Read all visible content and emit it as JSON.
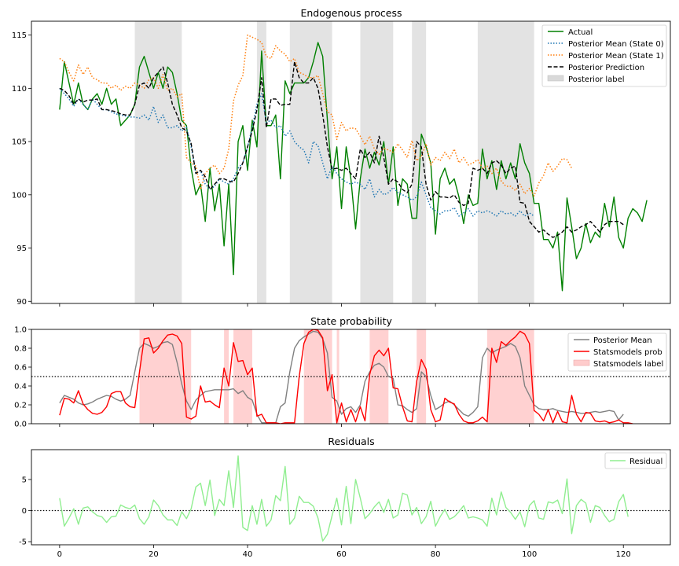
{
  "chart_data": [
    {
      "type": "line",
      "title": "Endogenous process",
      "xlim": [
        -6,
        130
      ],
      "ylim": [
        89.8,
        116.3
      ],
      "yticks": [
        90,
        95,
        100,
        105,
        110,
        115
      ],
      "legend_position": "top-right",
      "bands": {
        "name": "Posterior label",
        "color": "#d9d9d9",
        "spans": [
          [
            16,
            26
          ],
          [
            42,
            44
          ],
          [
            49,
            58
          ],
          [
            64,
            71
          ],
          [
            75,
            78
          ],
          [
            89,
            101
          ]
        ]
      },
      "series": [
        {
          "name": "Actual",
          "style": "solid",
          "color": "#008000",
          "x_start": 0,
          "values": [
            108.0,
            112.5,
            110.5,
            108.5,
            110.5,
            108.5,
            108.0,
            109.0,
            109.5,
            108.5,
            110.0,
            108.5,
            109.0,
            106.5,
            107.0,
            107.5,
            108.5,
            112.0,
            113.0,
            111.5,
            110.0,
            111.5,
            110.0,
            112.0,
            111.5,
            109.5,
            107.0,
            106.5,
            102.5,
            100.0,
            101.0,
            97.5,
            102.5,
            98.5,
            101.0,
            95.2,
            101.0,
            92.5,
            105.0,
            106.5,
            102.3,
            107.0,
            104.5,
            113.5,
            106.5,
            106.5,
            107.5,
            101.5,
            110.7,
            109.5,
            110.5,
            110.5,
            110.5,
            111.0,
            112.5,
            114.3,
            113.0,
            107.0,
            101.5,
            104.5,
            98.7,
            104.5,
            101.5,
            96.8,
            101.5,
            104.3,
            102.5,
            104.0,
            102.8,
            105.0,
            101.0,
            104.5,
            99.0,
            101.5,
            101.0,
            97.8,
            97.8,
            105.7,
            104.5,
            103.0,
            96.3,
            101.5,
            102.5,
            101.0,
            101.5,
            99.8,
            97.3,
            100.0,
            99.0,
            99.2,
            104.3,
            101.5,
            103.2,
            100.5,
            103.2,
            101.5,
            103.0,
            101.5,
            104.8,
            103.0,
            102.0,
            99.2,
            99.2,
            95.8,
            95.8,
            95.0,
            96.5,
            91.0,
            99.7,
            97.0,
            94.0,
            95.0,
            97.3,
            95.5,
            96.5,
            96.0,
            99.2,
            97.0,
            99.8,
            96.0,
            95.0,
            97.8,
            98.7,
            98.3,
            97.5,
            99.5
          ]
        },
        {
          "name": "Posterior Mean (State 0)",
          "style": "dotted",
          "color": "#1f77b4",
          "x_start": 0,
          "values": [
            110.0,
            109.5,
            109.0,
            108.3,
            109.0,
            108.5,
            108.0,
            109.0,
            108.5,
            108.0,
            108.0,
            107.8,
            107.6,
            107.5,
            107.4,
            107.3,
            107.3,
            107.2,
            107.5,
            107.0,
            108.3,
            106.8,
            107.5,
            106.3,
            106.3,
            106.5,
            106.0,
            106.4,
            104.5,
            102.0,
            102.3,
            101.0,
            100.5,
            100.8,
            101.5,
            101.2,
            101.0,
            101.5,
            102.5,
            103.0,
            104.5,
            106.3,
            108.5,
            109.5,
            106.8,
            107.0,
            106.3,
            106.5,
            105.5,
            106.0,
            105.0,
            104.5,
            104.2,
            103.0,
            105.0,
            104.6,
            103.0,
            101.5,
            102.7,
            102.0,
            101.5,
            101.2,
            101.0,
            101.2,
            101.0,
            100.5,
            101.5,
            99.8,
            100.5,
            100.0,
            100.2,
            100.7,
            100.2,
            100.0,
            99.8,
            99.5,
            99.8,
            101.2,
            100.0,
            98.8,
            98.5,
            98.2,
            98.5,
            98.5,
            98.8,
            98.0,
            98.3,
            98.7,
            98.0,
            98.5,
            98.3,
            98.5,
            98.3,
            98.0,
            98.5,
            98.2,
            98.3,
            98.0,
            98.5,
            98.0,
            98.3,
            98.0
          ]
        },
        {
          "name": "Posterior Mean (State 1)",
          "style": "dotted",
          "color": "#ff7f0e",
          "x_start": 0,
          "values": [
            112.8,
            112.5,
            111.5,
            110.7,
            112.2,
            111.3,
            112.0,
            111.0,
            110.8,
            110.5,
            110.5,
            110.0,
            110.3,
            109.8,
            110.2,
            110.0,
            110.5,
            110.3,
            110.0,
            110.8,
            111.0,
            110.0,
            111.3,
            109.8,
            110.0,
            109.2,
            109.5,
            103.5,
            103.0,
            102.7,
            100.5,
            102.0,
            102.5,
            102.8,
            102.0,
            102.5,
            104.3,
            108.8,
            110.3,
            111.2,
            115.0,
            114.8,
            114.6,
            114.3,
            113.0,
            112.8,
            114.0,
            113.5,
            113.2,
            112.5,
            112.8,
            111.5,
            111.3,
            111.0,
            111.0,
            111.2,
            109.5,
            107.8,
            107.5,
            105.2,
            106.8,
            106.0,
            106.3,
            106.2,
            105.5,
            104.7,
            105.5,
            104.3,
            103.8,
            104.4,
            104.2,
            104.0,
            104.8,
            104.2,
            103.5,
            105.1,
            103.2,
            103.6,
            104.8,
            102.8,
            103.5,
            103.2,
            104.0,
            103.4,
            104.3,
            103.0,
            103.5,
            102.8,
            103.0,
            103.3,
            102.5,
            102.7,
            102.0,
            102.5,
            101.3,
            100.8,
            100.8,
            100.4,
            101.0,
            100.1,
            100.6,
            99.9,
            101.1,
            101.8,
            103.0,
            102.2,
            102.7,
            103.4,
            103.3,
            102.5
          ]
        },
        {
          "name": "Posterior Prediction",
          "style": "dashed",
          "color": "#000000",
          "x_start": 0,
          "values": [
            110.0,
            109.8,
            109.3,
            108.5,
            109.0,
            108.7,
            108.9,
            108.9,
            109.0,
            108.0,
            108.0,
            107.9,
            107.8,
            107.6,
            107.5,
            107.5,
            108.5,
            110.3,
            110.5,
            110.0,
            111.0,
            111.5,
            112.0,
            110.5,
            108.5,
            107.5,
            106.3,
            106.0,
            104.8,
            102.0,
            102.3,
            101.7,
            100.5,
            101.0,
            101.5,
            101.5,
            101.3,
            101.2,
            102.0,
            103.0,
            104.5,
            106.0,
            108.0,
            111.0,
            106.3,
            109.0,
            109.0,
            108.4,
            108.5,
            108.5,
            112.5,
            111.0,
            110.5,
            110.5,
            111.0,
            110.0,
            107.5,
            104.5,
            102.4,
            102.5,
            102.3,
            102.5,
            102.0,
            101.5,
            104.3,
            103.5,
            104.0,
            103.0,
            105.5,
            103.5,
            101.0,
            101.5,
            101.2,
            100.5,
            100.2,
            101.0,
            105.0,
            104.5,
            101.0,
            99.5,
            100.3,
            99.8,
            99.8,
            99.7,
            100.0,
            99.3,
            99.0,
            99.2,
            102.5,
            102.3,
            102.5,
            102.0,
            103.0,
            103.2,
            102.8,
            102.0,
            102.5,
            102.7,
            99.3,
            99.2,
            97.5,
            97.0,
            96.5,
            96.7,
            96.3,
            96.0,
            96.2,
            96.5,
            97.0,
            96.5,
            96.7,
            97.0,
            97.2,
            97.5,
            97.0,
            96.5,
            97.2,
            97.5,
            97.5,
            97.5,
            97.2
          ]
        }
      ]
    },
    {
      "type": "line",
      "title": "State probability",
      "xlim": [
        -6,
        130
      ],
      "ylim": [
        0,
        1
      ],
      "yticks": [
        0.0,
        0.2,
        0.4,
        0.6,
        0.8,
        1.0
      ],
      "legend_position": "top-right",
      "hline": 0.5,
      "bands": {
        "name": "Statsmodels label",
        "color": "#ffcccc",
        "spans": [
          [
            17,
            28
          ],
          [
            35,
            36
          ],
          [
            37,
            41
          ],
          [
            52,
            58
          ],
          [
            59,
            59.5
          ],
          [
            66,
            70
          ],
          [
            76,
            78
          ],
          [
            91,
            101
          ]
        ]
      },
      "series": [
        {
          "name": "Posterior Mean",
          "color": "#808080",
          "x_start": 0,
          "values": [
            0.22,
            0.3,
            0.28,
            0.26,
            0.22,
            0.2,
            0.21,
            0.23,
            0.26,
            0.28,
            0.3,
            0.29,
            0.26,
            0.24,
            0.26,
            0.3,
            0.55,
            0.8,
            0.85,
            0.83,
            0.8,
            0.82,
            0.86,
            0.87,
            0.84,
            0.65,
            0.42,
            0.24,
            0.15,
            0.25,
            0.3,
            0.34,
            0.35,
            0.36,
            0.36,
            0.36,
            0.36,
            0.37,
            0.32,
            0.35,
            0.28,
            0.25,
            0.1,
            0.01,
            0.01,
            0.01,
            0.01,
            0.18,
            0.22,
            0.55,
            0.8,
            0.88,
            0.92,
            0.95,
            0.98,
            0.97,
            0.9,
            0.75,
            0.28,
            0.24,
            0.1,
            0.16,
            0.18,
            0.12,
            0.2,
            0.45,
            0.55,
            0.62,
            0.64,
            0.6,
            0.5,
            0.48,
            0.2,
            0.19,
            0.15,
            0.12,
            0.16,
            0.55,
            0.5,
            0.3,
            0.15,
            0.18,
            0.22,
            0.24,
            0.2,
            0.15,
            0.1,
            0.08,
            0.12,
            0.18,
            0.7,
            0.8,
            0.75,
            0.78,
            0.8,
            0.82,
            0.85,
            0.82,
            0.7,
            0.4,
            0.3,
            0.2,
            0.16,
            0.15,
            0.15,
            0.16,
            0.14,
            0.13,
            0.12,
            0.13,
            0.12,
            0.11,
            0.11,
            0.12,
            0.13,
            0.12,
            0.13,
            0.14,
            0.13,
            0.04,
            0.1
          ]
        },
        {
          "name": "Statsmodels prob",
          "color": "#ff0000",
          "x_start": 0,
          "values": [
            0.09,
            0.27,
            0.26,
            0.22,
            0.35,
            0.21,
            0.15,
            0.11,
            0.1,
            0.12,
            0.18,
            0.32,
            0.34,
            0.34,
            0.22,
            0.18,
            0.17,
            0.55,
            0.9,
            0.91,
            0.75,
            0.8,
            0.88,
            0.94,
            0.95,
            0.93,
            0.85,
            0.07,
            0.05,
            0.08,
            0.4,
            0.23,
            0.24,
            0.2,
            0.17,
            0.59,
            0.4,
            0.86,
            0.66,
            0.67,
            0.52,
            0.59,
            0.08,
            0.1,
            0.01,
            0.01,
            0.01,
            0.0,
            0.01,
            0.01,
            0.01,
            0.5,
            0.85,
            0.97,
            1.0,
            0.99,
            0.91,
            0.35,
            0.52,
            0.01,
            0.22,
            0.02,
            0.15,
            0.02,
            0.18,
            0.03,
            0.52,
            0.72,
            0.78,
            0.72,
            0.8,
            0.38,
            0.37,
            0.18,
            0.03,
            0.02,
            0.45,
            0.68,
            0.58,
            0.15,
            0.02,
            0.04,
            0.27,
            0.23,
            0.21,
            0.1,
            0.03,
            0.01,
            0.01,
            0.03,
            0.07,
            0.02,
            0.8,
            0.65,
            0.87,
            0.83,
            0.88,
            0.92,
            0.98,
            0.95,
            0.85,
            0.14,
            0.1,
            0.03,
            0.15,
            0.01,
            0.13,
            0.02,
            0.01,
            0.3,
            0.1,
            0.02,
            0.12,
            0.11,
            0.03,
            0.02,
            0.03,
            0.01,
            0.02,
            0.04,
            0.01,
            0.01,
            0.0
          ]
        }
      ]
    },
    {
      "type": "line",
      "title": "Residuals",
      "xlim": [
        -6,
        130
      ],
      "ylim": [
        -5.5,
        9.8
      ],
      "yticks": [
        -5,
        0,
        5
      ],
      "xticks": [
        0,
        20,
        40,
        60,
        80,
        100,
        120
      ],
      "legend_position": "top-right",
      "hline": 0,
      "series": [
        {
          "name": "Residual",
          "color": "#90ee90",
          "x_start": 0,
          "values": [
            2.0,
            -2.5,
            -1.2,
            0.3,
            -2.2,
            0.4,
            0.6,
            -0.2,
            -0.8,
            -1.0,
            -1.9,
            -1.0,
            -0.9,
            0.9,
            0.5,
            0.3,
            0.9,
            -1.3,
            -2.2,
            -1.0,
            1.7,
            0.8,
            -0.7,
            -1.5,
            -1.5,
            -2.4,
            -0.2,
            -1.3,
            0.3,
            3.8,
            4.4,
            0.8,
            4.9,
            -0.8,
            1.8,
            0.8,
            6.4,
            0.5,
            8.8,
            -2.7,
            -3.2,
            0.8,
            -2.2,
            1.8,
            -2.5,
            -1.5,
            2.4,
            1.6,
            7.1,
            -2.2,
            -1.2,
            2.3,
            1.3,
            1.3,
            0.7,
            -1.2,
            -4.9,
            -3.8,
            -0.8,
            2.0,
            -2.3,
            3.9,
            -2.1,
            5.0,
            2.0,
            -1.3,
            -0.5,
            0.6,
            1.4,
            -0.3,
            1.8,
            -1.2,
            -0.7,
            2.8,
            2.5,
            -0.7,
            0.5,
            -2.1,
            -1.0,
            1.5,
            -2.5,
            -1.0,
            0.2,
            -1.4,
            -1.0,
            -0.2,
            0.8,
            -1.2,
            -1.0,
            -1.2,
            -1.5,
            -2.5,
            2.0,
            -0.7,
            3.0,
            0.5,
            -0.3,
            -1.4,
            -0.2,
            -2.6,
            0.8,
            1.6,
            -1.2,
            -1.4,
            1.4,
            1.2,
            1.7,
            -0.5,
            5.1,
            -3.7,
            0.8,
            1.8,
            1.2,
            -1.9,
            0.8,
            0.5,
            -0.8,
            -1.8,
            -1.4,
            1.4,
            2.6,
            -1.0
          ]
        }
      ]
    }
  ]
}
